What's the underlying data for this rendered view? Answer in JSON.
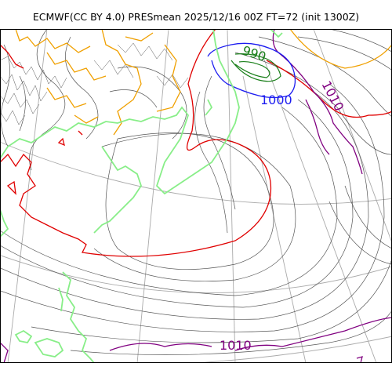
{
  "title": "ECMWF(CC BY 4.0) PRESmean 2025/12/16 00Z FT=72 (init 1300Z)",
  "contour_labels": [
    {
      "text": "990",
      "color": "#1a7f1a",
      "rotate": 18
    },
    {
      "text": "1000",
      "color": "#1c1cf0",
      "rotate": 0
    },
    {
      "text": "1010",
      "color": "#800080",
      "rotate": 62
    },
    {
      "text": "1010",
      "color": "#800080",
      "rotate": 0
    }
  ],
  "colors": {
    "isobar": "#555555",
    "isobar_1000": "#1c1cf0",
    "isobar_990": "#1a7f1a",
    "isobar_1010": "#800080",
    "isobar_1020": "#e00000",
    "isobar_1030": "#f0a000",
    "coastline": "#88ee88",
    "graticule": "#aaaaaa"
  }
}
